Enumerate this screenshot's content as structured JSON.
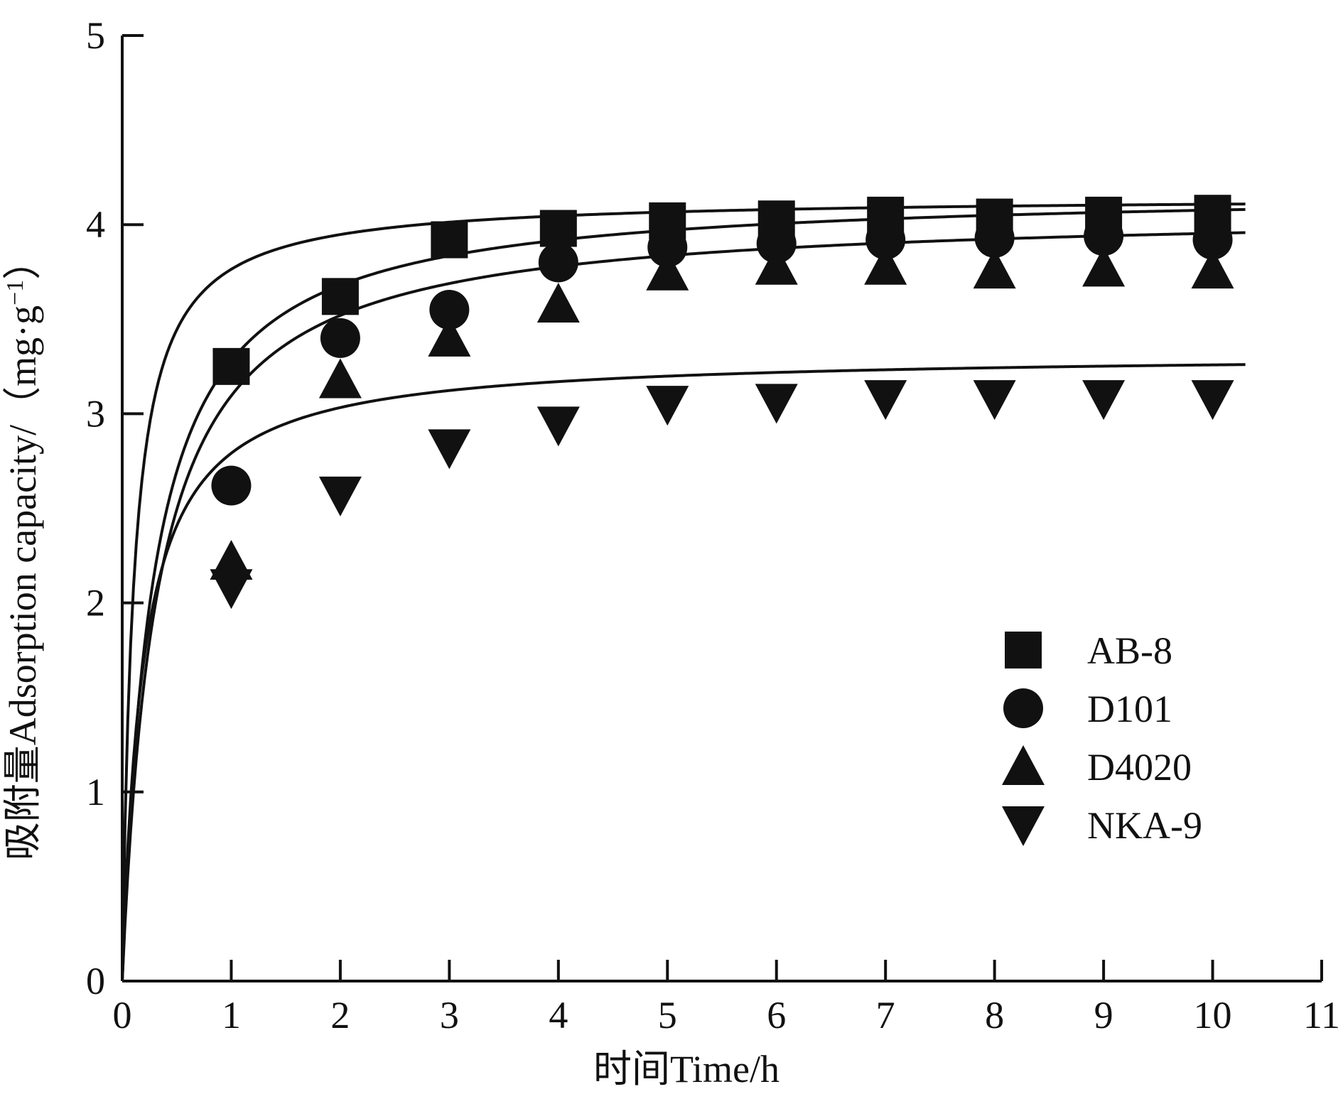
{
  "chart_data": {
    "type": "scatter",
    "title": "",
    "xlabel": "时间Time/h",
    "ylabel_main": "吸附量Adsorption capacity/（mg·g",
    "ylabel_sup": "−1",
    "ylabel_close": "）",
    "xlim": [
      0,
      11
    ],
    "ylim": [
      0,
      5
    ],
    "xticks": [
      "0",
      "1",
      "2",
      "3",
      "4",
      "5",
      "6",
      "7",
      "8",
      "9",
      "10",
      "11"
    ],
    "yticks": [
      "0",
      "1",
      "2",
      "3",
      "4",
      "5"
    ],
    "legend_position": "center-right",
    "series": [
      {
        "name": "AB-8",
        "marker": "square",
        "x": [
          1,
          2,
          3,
          4,
          5,
          6,
          7,
          8,
          9,
          10
        ],
        "y": [
          3.25,
          3.62,
          3.92,
          3.98,
          4.02,
          4.03,
          4.05,
          4.04,
          4.05,
          4.06
        ],
        "fit": {
          "qe": 4.15,
          "k": 2.35
        }
      },
      {
        "name": "D101",
        "marker": "circle",
        "x": [
          1,
          2,
          3,
          4,
          5,
          6,
          7,
          8,
          9,
          10
        ],
        "y": [
          2.62,
          3.4,
          3.55,
          3.8,
          3.88,
          3.9,
          3.92,
          3.93,
          3.94,
          3.92
        ],
        "fit": {
          "qe": 4.19,
          "k": 0.86
        }
      },
      {
        "name": "D4020",
        "marker": "triangle-up",
        "x": [
          1,
          2,
          3,
          4,
          5,
          6,
          7,
          8,
          9,
          10
        ],
        "y": [
          2.22,
          3.18,
          3.4,
          3.58,
          3.75,
          3.78,
          3.78,
          3.76,
          3.77,
          3.76
        ],
        "fit": {
          "qe": 4.08,
          "k": 0.77
        }
      },
      {
        "name": "NKA-9",
        "marker": "triangle-down",
        "x": [
          1,
          2,
          3,
          4,
          5,
          6,
          7,
          8,
          9,
          10
        ],
        "y": [
          2.08,
          2.57,
          2.82,
          2.94,
          3.05,
          3.06,
          3.08,
          3.08,
          3.08,
          3.08
        ],
        "fit": {
          "qe": 3.32,
          "k": 1.59
        }
      }
    ]
  }
}
